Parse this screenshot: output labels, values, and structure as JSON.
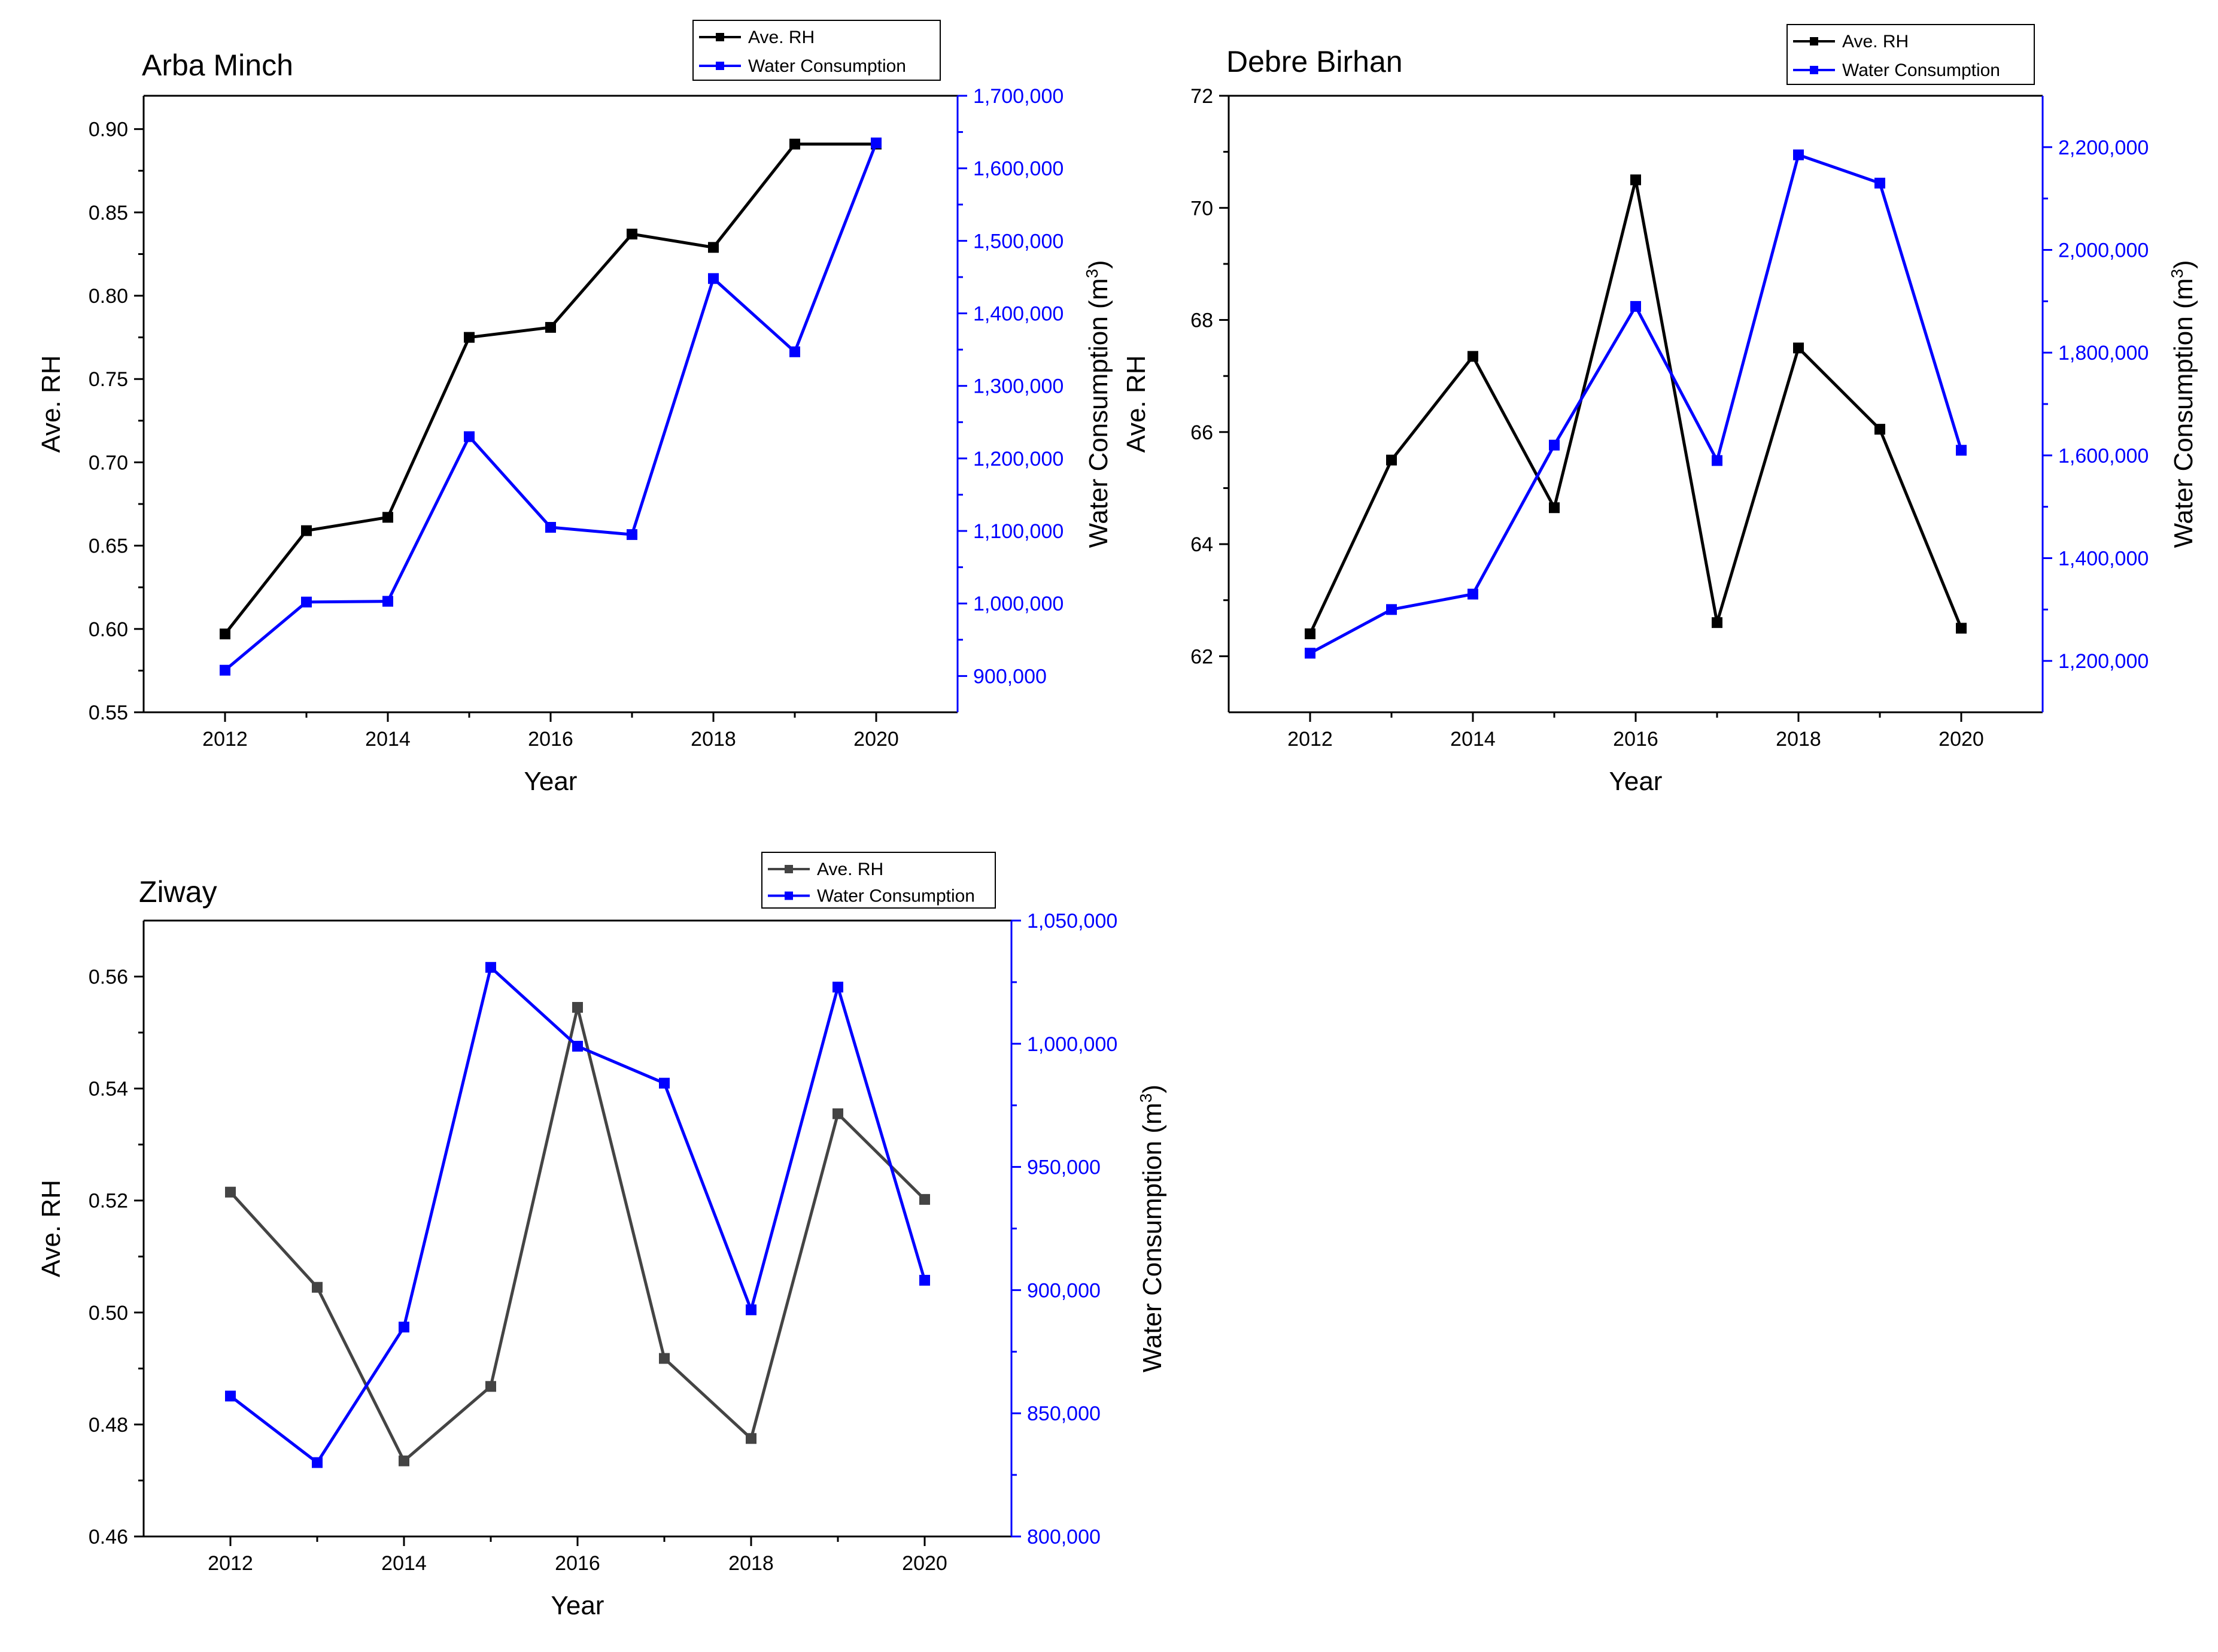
{
  "chart_data": [
    {
      "type": "line",
      "title": "Arba Minch",
      "xlabel": "Year",
      "ylabel": "Ave. RH",
      "y2label": "Water Consumption (m",
      "y2label_sup": "3",
      "y2label_close": ")",
      "x": [
        2012,
        2013,
        2014,
        2015,
        2016,
        2017,
        2018,
        2019,
        2020
      ],
      "xlim": [
        2011,
        2021
      ],
      "xticks": [
        "2012",
        "2014",
        "2016",
        "2018",
        "2020"
      ],
      "ylim": [
        0.55,
        0.92
      ],
      "yticks": [
        "0.55",
        "0.60",
        "0.65",
        "0.70",
        "0.75",
        "0.80",
        "0.85",
        "0.90"
      ],
      "y2lim": [
        850000,
        1700000
      ],
      "y2ticks": [
        "900,000",
        "1,000,000",
        "1,100,000",
        "1,200,000",
        "1,300,000",
        "1,400,000",
        "1,500,000",
        "1,600,000",
        "1,700,000"
      ],
      "series": [
        {
          "name": "Ave. RH",
          "axis": "left",
          "color": "#000000",
          "values": [
            0.597,
            0.659,
            0.667,
            0.775,
            0.781,
            0.837,
            0.829,
            0.891,
            0.891
          ]
        },
        {
          "name": "Water Consumption",
          "axis": "right",
          "color": "#0000ff",
          "values": [
            908000,
            1002000,
            1003000,
            1230000,
            1105000,
            1095000,
            1448000,
            1347000,
            1635000
          ]
        }
      ],
      "legend": "top-right"
    },
    {
      "type": "line",
      "title": "Debre Birhan",
      "xlabel": "Year",
      "ylabel": "Ave. RH",
      "y2label": "Water Consumption (m",
      "y2label_sup": "3",
      "y2label_close": ")",
      "x": [
        2012,
        2013,
        2014,
        2015,
        2016,
        2017,
        2018,
        2019,
        2020
      ],
      "xlim": [
        2011,
        2021
      ],
      "xticks": [
        "2012",
        "2014",
        "2016",
        "2018",
        "2020"
      ],
      "ylim": [
        61,
        72
      ],
      "yticks": [
        "62",
        "64",
        "66",
        "68",
        "70",
        "72"
      ],
      "y2lim": [
        1100000,
        2300000
      ],
      "y2ticks": [
        "1,200,000",
        "1,400,000",
        "1,600,000",
        "1,800,000",
        "2,000,000",
        "2,200,000"
      ],
      "series": [
        {
          "name": "Ave. RH",
          "axis": "left",
          "color": "#000000",
          "values": [
            62.4,
            65.5,
            67.35,
            64.65,
            70.5,
            62.6,
            67.5,
            66.05,
            62.5
          ]
        },
        {
          "name": "Water Consumption",
          "axis": "right",
          "color": "#0000ff",
          "values": [
            1215000,
            1300000,
            1330000,
            1620000,
            1890000,
            1590000,
            2185000,
            2130000,
            1610000
          ]
        }
      ],
      "legend": "top-right"
    },
    {
      "type": "line",
      "title": "Ziway",
      "xlabel": "Year",
      "ylabel": "Ave. RH",
      "y2label": "Water Consumption (m",
      "y2label_sup": "3",
      "y2label_close": ")",
      "x": [
        2012,
        2013,
        2014,
        2015,
        2016,
        2017,
        2018,
        2019,
        2020
      ],
      "xlim": [
        2011,
        2021
      ],
      "xticks": [
        "2012",
        "2014",
        "2016",
        "2018",
        "2020"
      ],
      "ylim": [
        0.46,
        0.57
      ],
      "yticks": [
        "0.46",
        "0.48",
        "0.50",
        "0.52",
        "0.54",
        "0.56"
      ],
      "y2lim": [
        800000,
        1050000
      ],
      "y2ticks": [
        "800,000",
        "850,000",
        "900,000",
        "950,000",
        "1,000,000",
        "1,050,000"
      ],
      "series": [
        {
          "name": "Ave. RH",
          "axis": "left",
          "color": "#444444",
          "values": [
            0.5215,
            0.5045,
            0.4735,
            0.4868,
            0.5545,
            0.4918,
            0.4775,
            0.5355,
            0.5202
          ]
        },
        {
          "name": "Water Consumption",
          "axis": "right",
          "color": "#0000ff",
          "values": [
            857000,
            830000,
            885000,
            1031000,
            999000,
            984000,
            892000,
            1023000,
            904000
          ]
        }
      ],
      "legend": "top-right"
    }
  ]
}
